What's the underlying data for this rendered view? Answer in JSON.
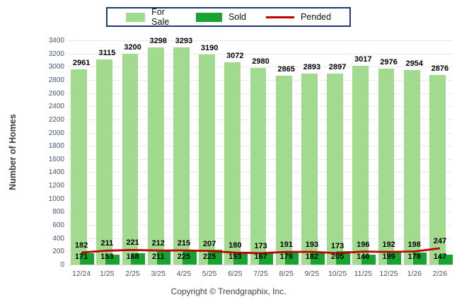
{
  "chart_data": {
    "type": "bar",
    "title": "",
    "xlabel": "",
    "ylabel": "Number of Homes",
    "ylim": [
      0,
      3400
    ],
    "ytick_step": 200,
    "grid": true,
    "legend_position": "top-center",
    "categories": [
      "12/24",
      "1/25",
      "2/25",
      "3/25",
      "4/25",
      "5/25",
      "6/25",
      "7/25",
      "8/25",
      "9/25",
      "10/25",
      "11/25",
      "12/25",
      "1/26",
      "2/26"
    ],
    "series": [
      {
        "name": "For Sale",
        "type": "bar",
        "color": "#a2da90",
        "values": [
          2961,
          3115,
          3200,
          3298,
          3293,
          3190,
          3072,
          2980,
          2865,
          2893,
          2897,
          3017,
          2976,
          2954,
          2876
        ]
      },
      {
        "name": "Sold",
        "type": "bar",
        "color": "#16a42f",
        "values": [
          171,
          153,
          168,
          211,
          225,
          225,
          193,
          167,
          179,
          182,
          205,
          146,
          199,
          178,
          147
        ]
      },
      {
        "name": "Pended",
        "type": "line",
        "color": "#c00000",
        "values": [
          182,
          211,
          221,
          212,
          215,
          207,
          180,
          173,
          191,
          193,
          173,
          196,
          192,
          198,
          247
        ]
      }
    ],
    "colors": {
      "grid": "#e9e9e9",
      "axis_text": "#44546a",
      "value_label": "#000000",
      "legend_border": "#1b3a6b"
    }
  },
  "footer": {
    "copyright": "Copyright © Trendgraphix, Inc."
  }
}
